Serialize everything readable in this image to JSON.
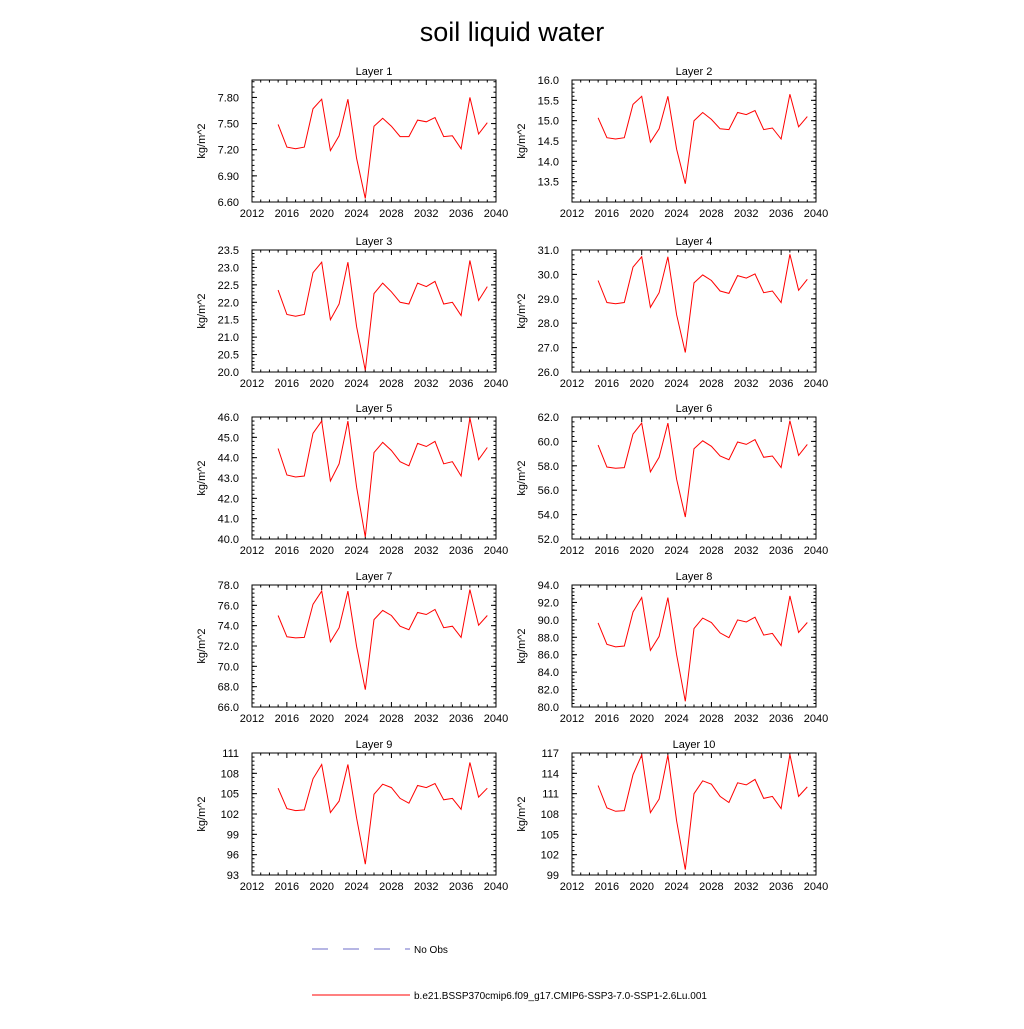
{
  "title": "soil liquid water",
  "ylabel": "kg/m^2",
  "x_ticks": [
    2012,
    2016,
    2020,
    2024,
    2028,
    2032,
    2036,
    2040
  ],
  "xlim": [
    2012,
    2040
  ],
  "legend": {
    "obs_label": "No Obs",
    "model_label": "b.e21.BSSP370cmip6.f09_g17.CMIP6-SSP3-7.0-SSP1-2.6Lu.001",
    "obs_color": "#6e6ec8",
    "model_color": "#ff0000"
  },
  "chart_data": [
    {
      "type": "line",
      "title": "Layer 1",
      "ylabel": "kg/m^2",
      "ylim": [
        6.6,
        8.0
      ],
      "yticks": [
        "6.60",
        "6.90",
        "7.20",
        "7.50",
        "7.80"
      ],
      "x": [
        2015,
        2016,
        2017,
        2018,
        2019,
        2020,
        2021,
        2022,
        2023,
        2024,
        2025,
        2026,
        2027,
        2028,
        2029,
        2030,
        2031,
        2032,
        2033,
        2034,
        2035,
        2036,
        2037,
        2038,
        2039
      ],
      "values": [
        7.49,
        7.23,
        7.21,
        7.23,
        7.67,
        7.78,
        7.19,
        7.36,
        7.78,
        7.1,
        6.64,
        7.47,
        7.56,
        7.47,
        7.35,
        7.35,
        7.54,
        7.52,
        7.57,
        7.35,
        7.36,
        7.21,
        7.8,
        7.38,
        7.51
      ]
    },
    {
      "type": "line",
      "title": "Layer 2",
      "ylabel": "kg/m^2",
      "ylim": [
        13.0,
        16.0
      ],
      "yticks": [
        "13.5",
        "14.0",
        "14.5",
        "15.0",
        "15.5",
        "16.0"
      ],
      "x": [
        2015,
        2016,
        2017,
        2018,
        2019,
        2020,
        2021,
        2022,
        2023,
        2024,
        2025,
        2026,
        2027,
        2028,
        2029,
        2030,
        2031,
        2032,
        2033,
        2034,
        2035,
        2036,
        2037,
        2038,
        2039
      ],
      "values": [
        15.07,
        14.58,
        14.55,
        14.58,
        15.4,
        15.6,
        14.47,
        14.8,
        15.6,
        14.3,
        13.45,
        15.0,
        15.2,
        15.03,
        14.8,
        14.78,
        15.2,
        15.15,
        15.25,
        14.78,
        14.82,
        14.55,
        15.65,
        14.85,
        15.1
      ]
    },
    {
      "type": "line",
      "title": "Layer 3",
      "ylabel": "kg/m^2",
      "ylim": [
        20.0,
        23.5
      ],
      "yticks": [
        "20.0",
        "20.5",
        "21.0",
        "21.5",
        "22.0",
        "22.5",
        "23.0",
        "23.5"
      ],
      "x": [
        2015,
        2016,
        2017,
        2018,
        2019,
        2020,
        2021,
        2022,
        2023,
        2024,
        2025,
        2026,
        2027,
        2028,
        2029,
        2030,
        2031,
        2032,
        2033,
        2034,
        2035,
        2036,
        2037,
        2038,
        2039
      ],
      "values": [
        22.35,
        21.65,
        21.6,
        21.65,
        22.85,
        23.15,
        21.5,
        21.95,
        23.15,
        21.3,
        20.05,
        22.25,
        22.55,
        22.3,
        22.0,
        21.95,
        22.55,
        22.45,
        22.6,
        21.95,
        22.0,
        21.62,
        23.2,
        22.05,
        22.45
      ]
    },
    {
      "type": "line",
      "title": "Layer 4",
      "ylabel": "kg/m^2",
      "ylim": [
        26.0,
        31.0
      ],
      "yticks": [
        "26.0",
        "27.0",
        "28.0",
        "29.0",
        "30.0",
        "31.0"
      ],
      "x": [
        2015,
        2016,
        2017,
        2018,
        2019,
        2020,
        2021,
        2022,
        2023,
        2024,
        2025,
        2026,
        2027,
        2028,
        2029,
        2030,
        2031,
        2032,
        2033,
        2034,
        2035,
        2036,
        2037,
        2038,
        2039
      ],
      "values": [
        29.75,
        28.85,
        28.8,
        28.85,
        30.3,
        30.72,
        28.65,
        29.25,
        30.72,
        28.35,
        26.8,
        29.65,
        29.98,
        29.75,
        29.32,
        29.22,
        29.95,
        29.85,
        30.02,
        29.25,
        29.32,
        28.85,
        30.82,
        29.35,
        29.8
      ]
    },
    {
      "type": "line",
      "title": "Layer 5",
      "ylabel": "kg/m^2",
      "ylim": [
        40.0,
        46.0
      ],
      "yticks": [
        "40.0",
        "41.0",
        "42.0",
        "43.0",
        "44.0",
        "45.0",
        "46.0"
      ],
      "x": [
        2015,
        2016,
        2017,
        2018,
        2019,
        2020,
        2021,
        2022,
        2023,
        2024,
        2025,
        2026,
        2027,
        2028,
        2029,
        2030,
        2031,
        2032,
        2033,
        2034,
        2035,
        2036,
        2037,
        2038,
        2039
      ],
      "values": [
        44.45,
        43.15,
        43.05,
        43.1,
        45.2,
        45.8,
        42.85,
        43.7,
        45.8,
        42.55,
        40.1,
        44.25,
        44.75,
        44.35,
        43.8,
        43.6,
        44.7,
        44.55,
        44.8,
        43.7,
        43.8,
        43.1,
        45.95,
        43.9,
        44.5
      ]
    },
    {
      "type": "line",
      "title": "Layer 6",
      "ylabel": "kg/m^2",
      "ylim": [
        52.0,
        62.0
      ],
      "yticks": [
        "52.0",
        "54.0",
        "56.0",
        "58.0",
        "60.0",
        "62.0"
      ],
      "x": [
        2015,
        2016,
        2017,
        2018,
        2019,
        2020,
        2021,
        2022,
        2023,
        2024,
        2025,
        2026,
        2027,
        2028,
        2029,
        2030,
        2031,
        2032,
        2033,
        2034,
        2035,
        2036,
        2037,
        2038,
        2039
      ],
      "values": [
        59.7,
        57.9,
        57.8,
        57.85,
        60.6,
        61.5,
        57.5,
        58.7,
        61.5,
        56.9,
        53.8,
        59.4,
        60.05,
        59.6,
        58.8,
        58.5,
        59.95,
        59.75,
        60.15,
        58.7,
        58.8,
        57.85,
        61.7,
        58.85,
        59.75
      ]
    },
    {
      "type": "line",
      "title": "Layer 7",
      "ylabel": "kg/m^2",
      "ylim": [
        66.0,
        78.0
      ],
      "yticks": [
        "66.0",
        "68.0",
        "70.0",
        "72.0",
        "74.0",
        "76.0",
        "78.0"
      ],
      "x": [
        2015,
        2016,
        2017,
        2018,
        2019,
        2020,
        2021,
        2022,
        2023,
        2024,
        2025,
        2026,
        2027,
        2028,
        2029,
        2030,
        2031,
        2032,
        2033,
        2034,
        2035,
        2036,
        2037,
        2038,
        2039
      ],
      "values": [
        75.0,
        72.9,
        72.8,
        72.85,
        76.1,
        77.4,
        72.4,
        73.8,
        77.4,
        71.95,
        67.7,
        74.6,
        75.5,
        75.0,
        73.95,
        73.6,
        75.3,
        75.1,
        75.6,
        73.8,
        73.95,
        72.85,
        77.55,
        74.05,
        75.0
      ]
    },
    {
      "type": "line",
      "title": "Layer 8",
      "ylabel": "kg/m^2",
      "ylim": [
        80.0,
        94.0
      ],
      "yticks": [
        "80.0",
        "82.0",
        "84.0",
        "86.0",
        "88.0",
        "90.0",
        "92.0",
        "94.0"
      ],
      "x": [
        2015,
        2016,
        2017,
        2018,
        2019,
        2020,
        2021,
        2022,
        2023,
        2024,
        2025,
        2026,
        2027,
        2028,
        2029,
        2030,
        2031,
        2032,
        2033,
        2034,
        2035,
        2036,
        2037,
        2038,
        2039
      ],
      "values": [
        89.65,
        87.2,
        86.9,
        87.0,
        90.9,
        92.55,
        86.5,
        88.1,
        92.55,
        86.0,
        80.65,
        89.0,
        90.2,
        89.7,
        88.5,
        87.95,
        90.0,
        89.75,
        90.3,
        88.25,
        88.45,
        87.05,
        92.75,
        88.55,
        89.7
      ]
    },
    {
      "type": "line",
      "title": "Layer 9",
      "ylabel": "kg/m^2",
      "ylim": [
        93.0,
        111.0
      ],
      "yticks": [
        "93",
        "96",
        "99",
        "102",
        "105",
        "108",
        "111"
      ],
      "x": [
        2015,
        2016,
        2017,
        2018,
        2019,
        2020,
        2021,
        2022,
        2023,
        2024,
        2025,
        2026,
        2027,
        2028,
        2029,
        2030,
        2031,
        2032,
        2033,
        2034,
        2035,
        2036,
        2037,
        2038,
        2039
      ],
      "values": [
        105.8,
        102.8,
        102.5,
        102.6,
        107.2,
        109.3,
        102.2,
        103.9,
        109.3,
        101.4,
        94.6,
        104.9,
        106.4,
        105.9,
        104.3,
        103.6,
        106.2,
        105.9,
        106.5,
        104.1,
        104.3,
        102.7,
        109.6,
        104.5,
        105.8
      ]
    },
    {
      "type": "line",
      "title": "Layer 10",
      "ylabel": "kg/m^2",
      "ylim": [
        99.0,
        117.0
      ],
      "yticks": [
        "99",
        "102",
        "105",
        "108",
        "111",
        "114",
        "117"
      ],
      "x": [
        2015,
        2016,
        2017,
        2018,
        2019,
        2020,
        2021,
        2022,
        2023,
        2024,
        2025,
        2026,
        2027,
        2028,
        2029,
        2030,
        2031,
        2032,
        2033,
        2034,
        2035,
        2036,
        2037,
        2038,
        2039
      ],
      "values": [
        112.2,
        108.9,
        108.4,
        108.5,
        113.8,
        116.7,
        108.2,
        110.2,
        116.7,
        107.0,
        99.8,
        111.0,
        112.9,
        112.4,
        110.6,
        109.7,
        112.6,
        112.3,
        113.1,
        110.3,
        110.6,
        108.8,
        116.8,
        110.6,
        112.0
      ]
    }
  ]
}
